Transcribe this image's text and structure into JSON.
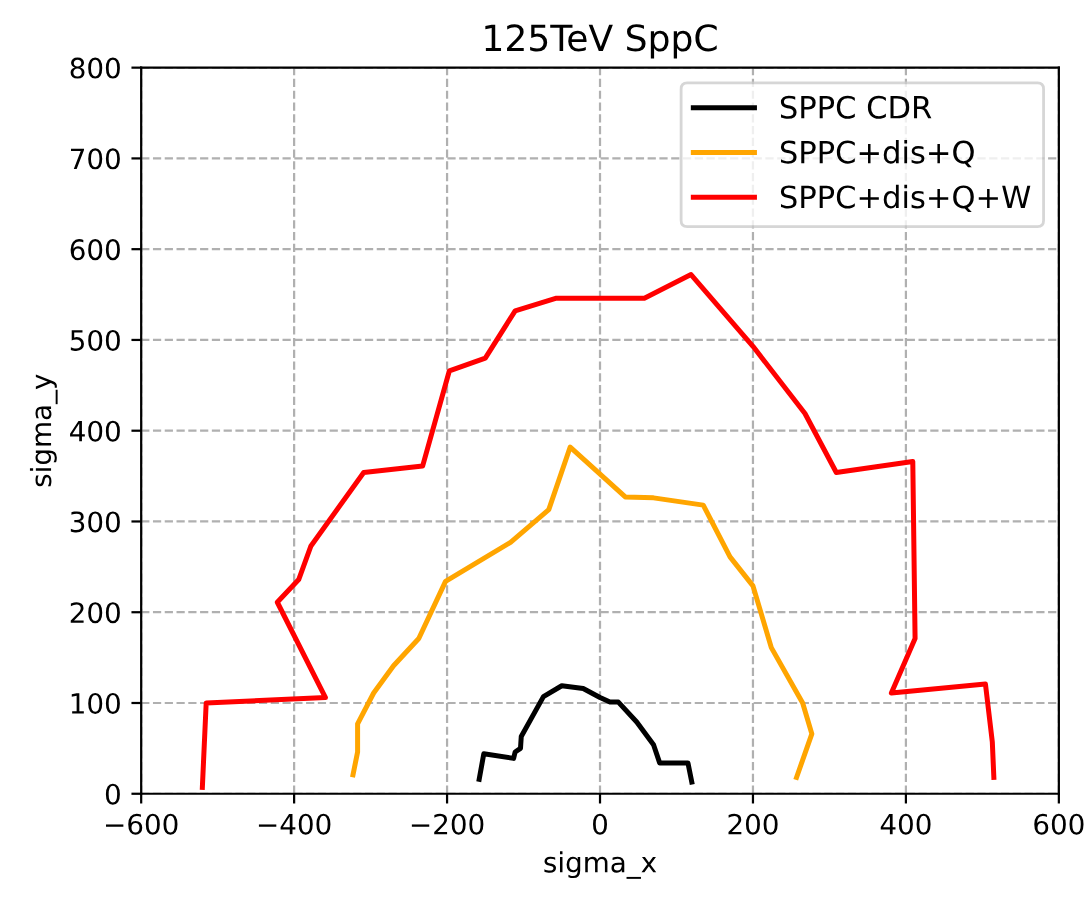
{
  "chart_data": {
    "type": "line",
    "title": "125TeV SppC",
    "xlabel": "sigma_x",
    "ylabel": "sigma_y",
    "xlim": [
      -600,
      600
    ],
    "ylim": [
      0,
      800
    ],
    "xticks": [
      {
        "value": -600,
        "label": "−600"
      },
      {
        "value": -400,
        "label": "−400"
      },
      {
        "value": -200,
        "label": "−200"
      },
      0,
      200,
      400,
      600
    ],
    "yticks": [
      0,
      100,
      200,
      300,
      400,
      500,
      600,
      700,
      800
    ],
    "grid": true,
    "legend": "top right",
    "series": [
      {
        "name": "SPPC CDR",
        "color": "#000000",
        "x": [
          -158,
          -152,
          -113,
          -111,
          -104,
          -103,
          -74,
          -50,
          -22,
          0,
          13,
          24,
          48,
          70,
          78,
          115,
          120
        ],
        "values": [
          16,
          44,
          39,
          46,
          50,
          63,
          107,
          119,
          116,
          106,
          101,
          101,
          79,
          54,
          34,
          34,
          13
        ]
      },
      {
        "name": "SPPC+dis+Q",
        "color": "#ffa500",
        "x": [
          -323,
          -317,
          -317,
          -296,
          -270,
          -237,
          -202,
          -117,
          -67,
          -39,
          33,
          70,
          135,
          170,
          200,
          224,
          265,
          277,
          257
        ],
        "values": [
          21,
          46,
          77,
          111,
          141,
          171,
          234,
          277,
          313,
          382,
          327,
          326,
          318,
          261,
          229,
          161,
          100,
          66,
          18
        ]
      },
      {
        "name": "SPPC+dis+Q+W",
        "color": "#ff0000",
        "x": [
          -520,
          -515,
          -359,
          -422,
          -394,
          -378,
          -309,
          -232,
          -197,
          -150,
          -111,
          -57,
          58,
          119,
          200,
          268,
          309,
          409,
          412,
          381,
          504,
          513,
          515
        ],
        "values": [
          7,
          100,
          106,
          211,
          236,
          273,
          354,
          361,
          466,
          480,
          532,
          546,
          546,
          572,
          493,
          419,
          354,
          366,
          171,
          111,
          121,
          57,
          18
        ]
      }
    ]
  }
}
